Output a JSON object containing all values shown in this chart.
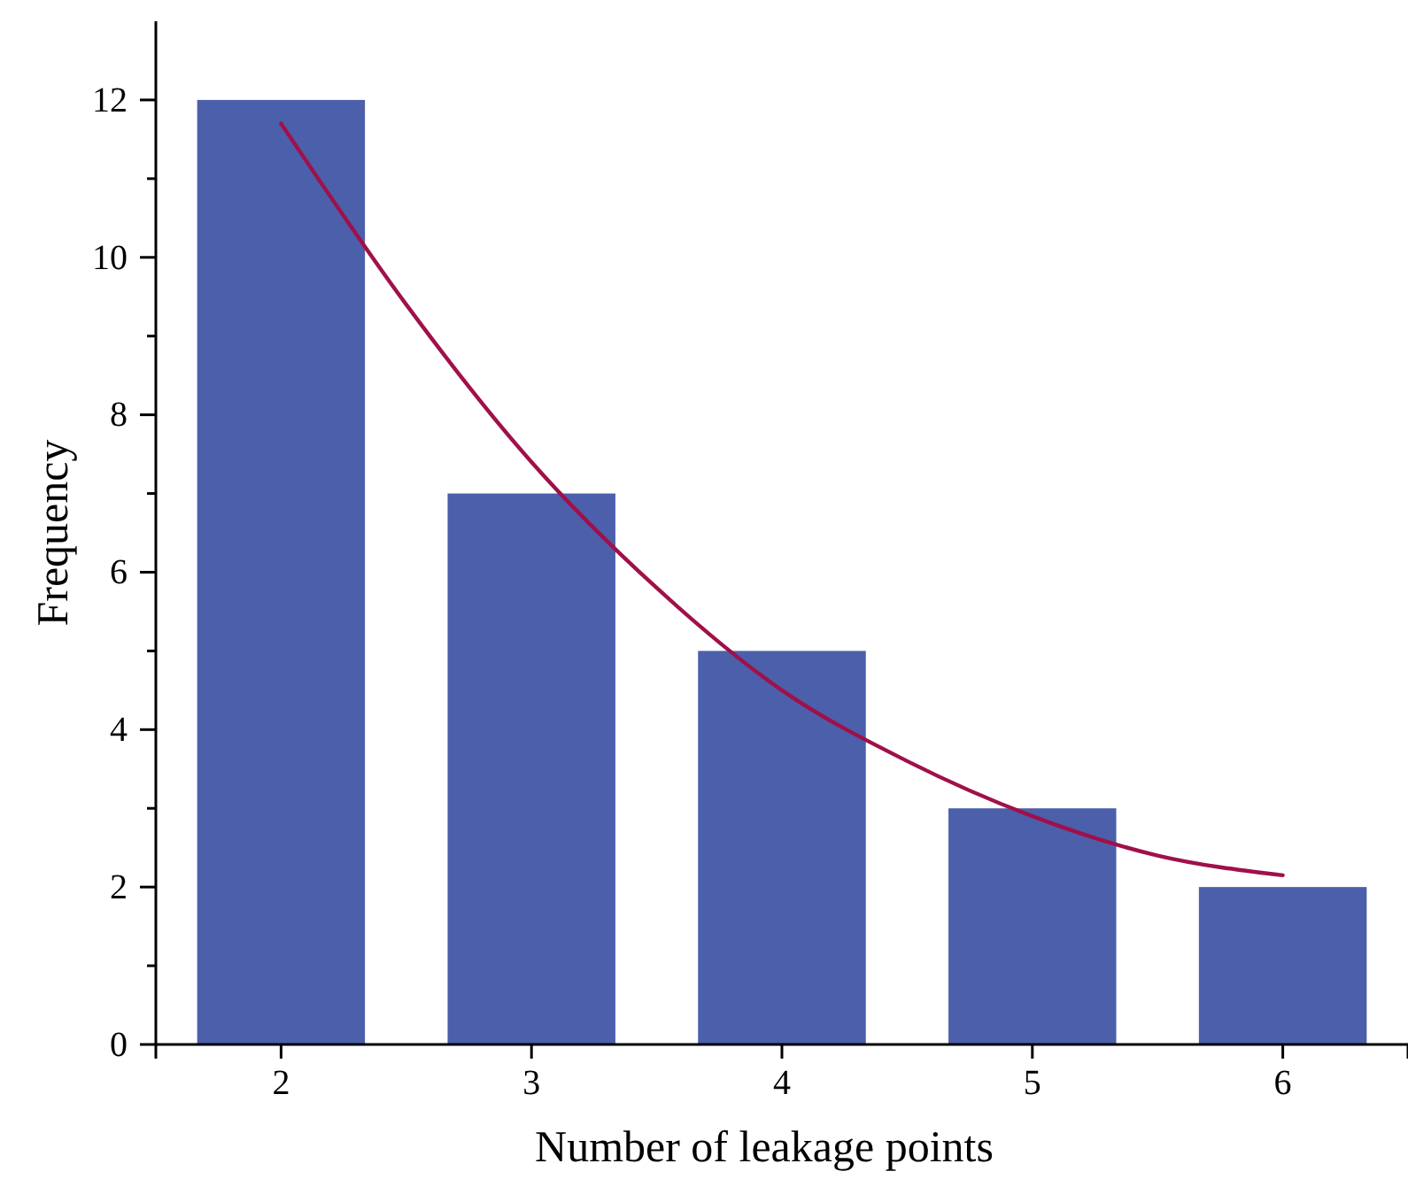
{
  "chart_data": {
    "type": "bar",
    "xlabel": "Number of leakage points",
    "ylabel": "Frequency",
    "x": [
      2,
      3,
      4,
      5,
      6
    ],
    "xlim": [
      1.5,
      6.5
    ],
    "xticks": [
      2,
      3,
      4,
      5,
      6
    ],
    "ylim": [
      0,
      13
    ],
    "yticks": [
      0,
      {
        "value": 1,
        "label": null
      },
      2,
      {
        "value": 3,
        "label": null
      },
      4,
      {
        "value": 5,
        "label": null
      },
      6,
      {
        "value": 7,
        "label": null
      },
      8,
      {
        "value": 9,
        "label": null
      },
      10,
      {
        "value": 11,
        "label": null
      },
      12
    ],
    "series": [
      {
        "color": "#4c5fab",
        "values": [
          12,
          7,
          5,
          3,
          2
        ]
      },
      {
        "type": "line",
        "color": "#a0104a",
        "x": [
          2,
          2.5,
          3,
          3.5,
          4,
          4.5,
          5,
          5.5,
          6
        ],
        "values": [
          11.7,
          9.4,
          7.4,
          5.8,
          4.5,
          3.6,
          2.9,
          2.4,
          2.15
        ]
      }
    ]
  }
}
